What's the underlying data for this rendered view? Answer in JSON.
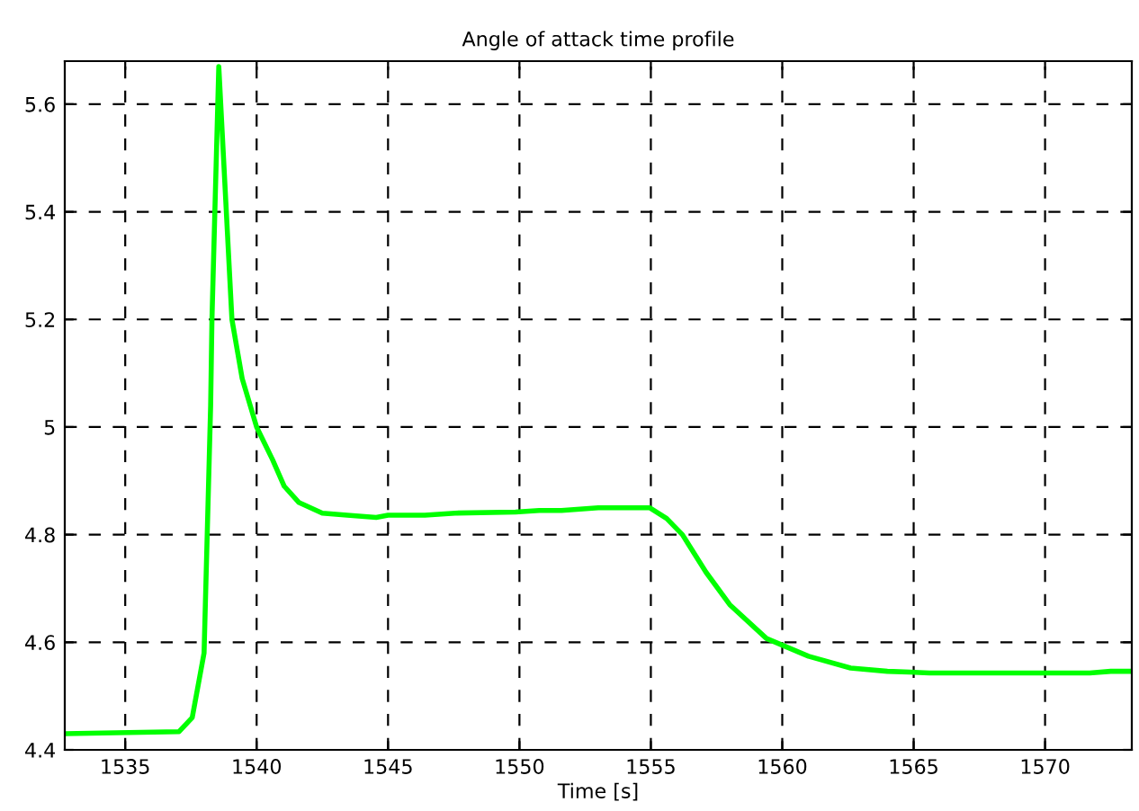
{
  "chart_data": {
    "type": "line",
    "title": "Angle of attack time profile",
    "xlabel": "Time [s]",
    "series": [
      {
        "color": "#00ff00",
        "x": [
          1532.7,
          1537.05,
          1537.55,
          1538.0,
          1538.25,
          1538.3,
          1538.56,
          1539.06,
          1539.45,
          1540.0,
          1540.6,
          1541.05,
          1541.6,
          1542.5,
          1543.45,
          1544.55,
          1545.0,
          1546.4,
          1547.55,
          1549.85,
          1550.75,
          1551.6,
          1553.0,
          1554.95,
          1555.6,
          1556.2,
          1557.1,
          1558.0,
          1559.4,
          1561.0,
          1562.6,
          1564.0,
          1565.6,
          1571.7,
          1572.5,
          1573.2
        ],
        "values": [
          4.43,
          4.434,
          4.46,
          4.58,
          5.04,
          5.2,
          5.67,
          5.2,
          5.09,
          5.0,
          4.94,
          4.89,
          4.86,
          4.84,
          4.836,
          4.832,
          4.836,
          4.836,
          4.84,
          4.842,
          4.845,
          4.845,
          4.85,
          4.85,
          4.83,
          4.8,
          4.73,
          4.67,
          4.607,
          4.574,
          4.552,
          4.546,
          4.543,
          4.543,
          4.546,
          4.546
        ]
      }
    ],
    "xlim": [
      1532.7,
      1573.3
    ],
    "ylim": [
      4.4,
      5.68
    ],
    "xticks": [
      1535,
      1540,
      1545,
      1550,
      1555,
      1560,
      1565,
      1570
    ],
    "yticks": [
      4.4,
      4.6,
      4.8,
      5,
      5.2,
      5.4,
      5.6
    ],
    "grid": true,
    "line_style": "solid",
    "legend": false
  }
}
